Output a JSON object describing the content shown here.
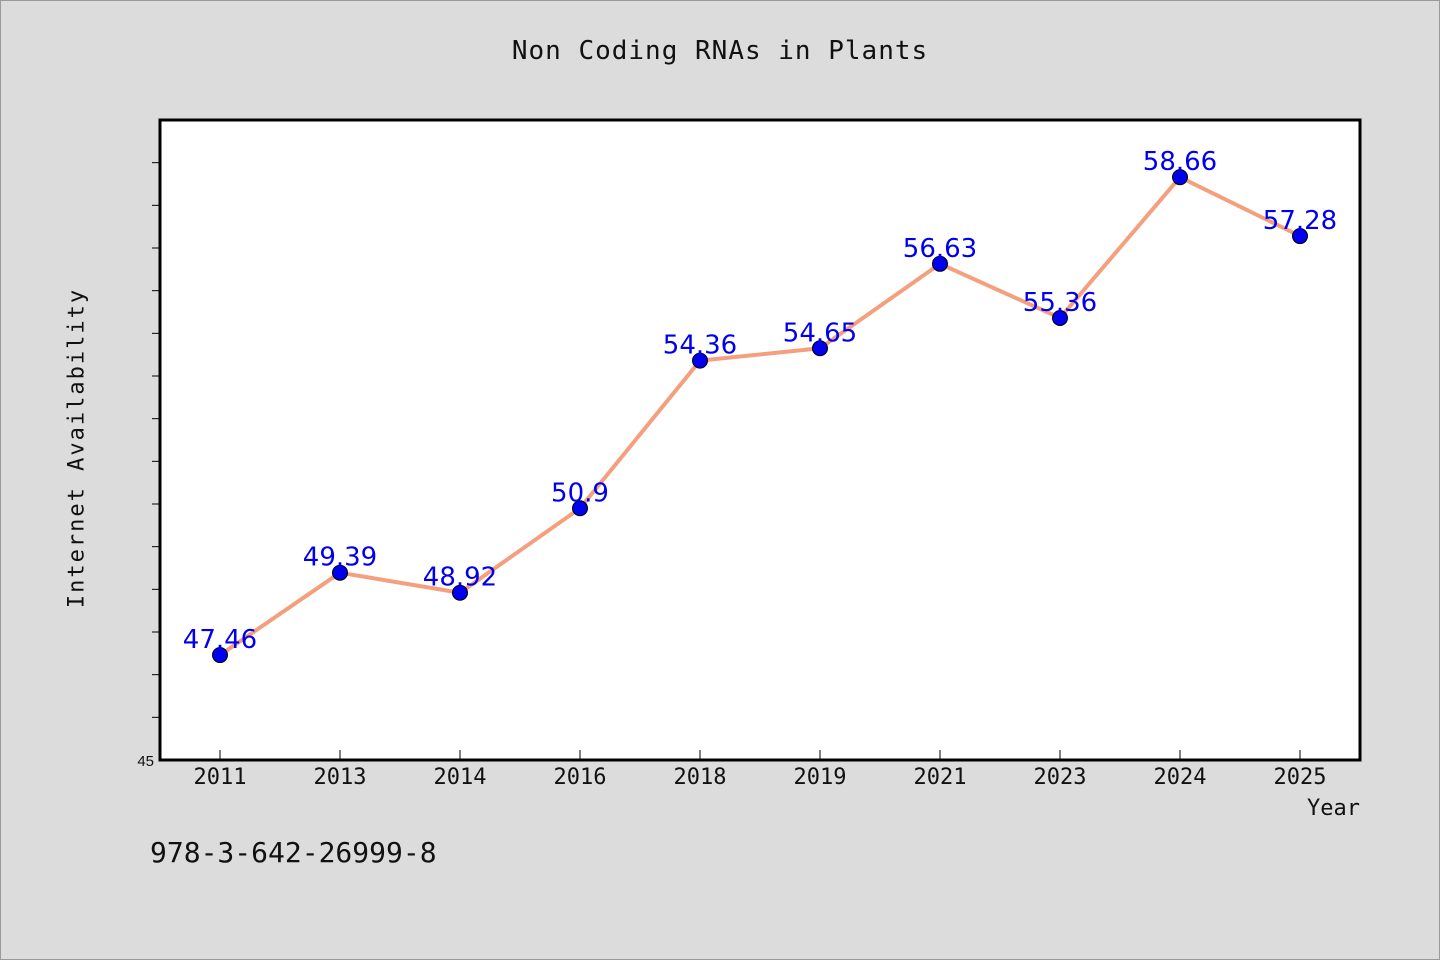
{
  "chart_data": {
    "type": "line",
    "title": "Non Coding RNAs in Plants",
    "xlabel": "Year",
    "ylabel": "Internet Availability",
    "categories": [
      "2011",
      "2013",
      "2014",
      "2016",
      "2018",
      "2019",
      "2021",
      "2023",
      "2024",
      "2025"
    ],
    "series": [
      {
        "values": [
          47.46,
          49.39,
          48.92,
          50.9,
          54.36,
          54.65,
          56.63,
          55.36,
          58.66,
          57.28
        ]
      }
    ],
    "data_labels": [
      "47.46",
      "49.39",
      "48.92",
      "50.9",
      "54.36",
      "54.65",
      "56.63",
      "55.36",
      "58.66",
      "57.28"
    ],
    "ylim": [
      45,
      60
    ],
    "y_tick_labels": [
      "45"
    ],
    "grid": false,
    "legend": "none",
    "colors": {
      "line": "#f4a07e",
      "marker": "#0000ee",
      "data_label": "#0000ee",
      "plot_background": "#ffffff",
      "page_background": "#dcdcdc"
    }
  },
  "footer": {
    "code": "978-3-642-26999-8"
  }
}
